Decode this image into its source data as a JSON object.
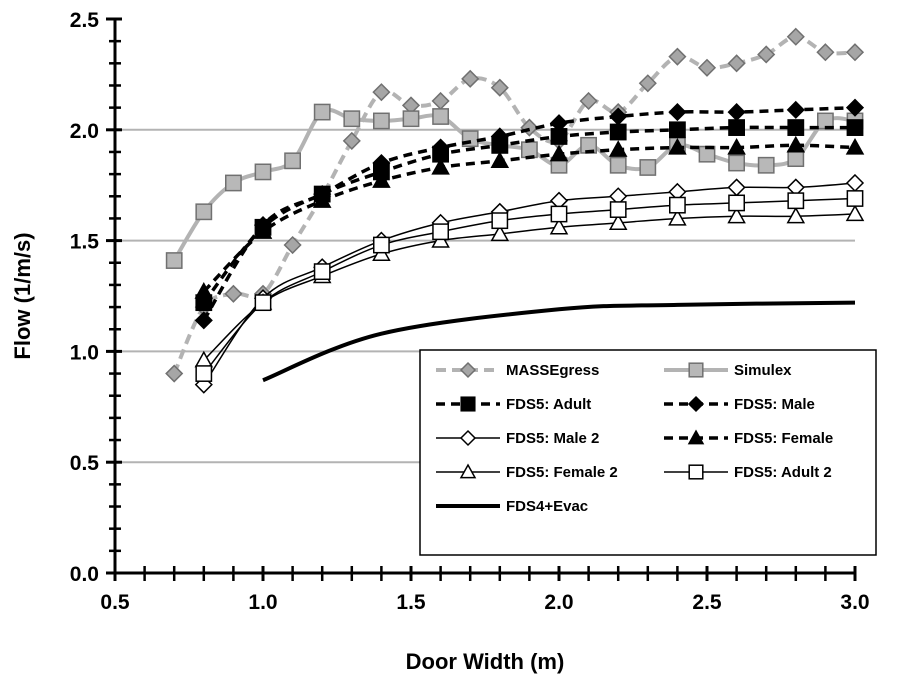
{
  "chart_data": {
    "type": "line",
    "title": "",
    "xlabel": "Door Width (m)",
    "ylabel": "Flow (1/m/s)",
    "xlim": [
      0.5,
      3.0
    ],
    "ylim": [
      0.0,
      2.5
    ],
    "xticks": [
      "0.5",
      "1.0",
      "1.5",
      "2.0",
      "2.5",
      "3.0"
    ],
    "yticks": [
      "0.0",
      "0.5",
      "1.0",
      "1.5",
      "2.0",
      "2.5"
    ],
    "grid": "horizontal",
    "legend_position": "bottom-right",
    "series": [
      {
        "name": "MASSEgress",
        "color": "#b3b3b3",
        "dash": "10,6",
        "marker": "diamond",
        "fill": "#a6a6a6",
        "width": 4,
        "x": [
          0.7,
          0.8,
          0.9,
          1.0,
          1.1,
          1.2,
          1.3,
          1.4,
          1.5,
          1.6,
          1.7,
          1.8,
          1.9,
          2.0,
          2.1,
          2.2,
          2.3,
          2.4,
          2.5,
          2.6,
          2.7,
          2.8,
          2.9,
          3.0
        ],
        "y": [
          0.9,
          1.2,
          1.26,
          1.26,
          1.48,
          1.7,
          1.95,
          2.17,
          2.11,
          2.13,
          2.23,
          2.19,
          2.01,
          1.95,
          2.13,
          2.08,
          2.21,
          2.33,
          2.28,
          2.3,
          2.34,
          2.42,
          2.35,
          2.35
        ]
      },
      {
        "name": "Simulex",
        "color": "#b3b3b3",
        "dash": "",
        "marker": "square",
        "fill": "#b8b8b8",
        "width": 4,
        "x": [
          0.7,
          0.8,
          0.9,
          1.0,
          1.1,
          1.2,
          1.3,
          1.4,
          1.5,
          1.6,
          1.7,
          1.8,
          1.9,
          2.0,
          2.1,
          2.2,
          2.3,
          2.4,
          2.5,
          2.6,
          2.7,
          2.8,
          2.9,
          3.0
        ],
        "y": [
          1.41,
          1.63,
          1.76,
          1.81,
          1.86,
          2.08,
          2.05,
          2.04,
          2.05,
          2.06,
          1.96,
          1.93,
          1.91,
          1.84,
          1.93,
          1.84,
          1.83,
          1.93,
          1.89,
          1.85,
          1.84,
          1.87,
          2.04,
          2.04
        ]
      },
      {
        "name": "FDS5: Adult",
        "color": "#000000",
        "dash": "9,6",
        "marker": "square",
        "fill": "#000000",
        "width": 3.5,
        "x": [
          0.8,
          1.0,
          1.2,
          1.4,
          1.6,
          1.8,
          2.0,
          2.2,
          2.4,
          2.6,
          2.8,
          3.0
        ],
        "y": [
          1.22,
          1.56,
          1.71,
          1.81,
          1.89,
          1.93,
          1.97,
          1.99,
          2.0,
          2.01,
          2.01,
          2.01
        ]
      },
      {
        "name": "FDS5: Male",
        "color": "#000000",
        "dash": "9,6",
        "marker": "diamond",
        "fill": "#000000",
        "width": 3.5,
        "x": [
          0.8,
          1.0,
          1.2,
          1.4,
          1.6,
          1.8,
          2.0,
          2.2,
          2.4,
          2.6,
          2.8,
          3.0
        ],
        "y": [
          1.14,
          1.57,
          1.71,
          1.85,
          1.92,
          1.97,
          2.03,
          2.06,
          2.08,
          2.08,
          2.09,
          2.1
        ]
      },
      {
        "name": "FDS5: Male 2",
        "color": "#000000",
        "dash": "",
        "marker": "diamond",
        "fill": "#ffffff",
        "width": 1.5,
        "x": [
          0.8,
          1.0,
          1.2,
          1.4,
          1.6,
          1.8,
          2.0,
          2.2,
          2.4,
          2.6,
          2.8,
          3.0
        ],
        "y": [
          0.85,
          1.24,
          1.38,
          1.5,
          1.58,
          1.63,
          1.68,
          1.7,
          1.72,
          1.74,
          1.74,
          1.76
        ]
      },
      {
        "name": "FDS5: Female",
        "color": "#000000",
        "dash": "9,6",
        "marker": "triangle",
        "fill": "#000000",
        "width": 3.5,
        "x": [
          0.8,
          1.0,
          1.2,
          1.4,
          1.6,
          1.8,
          2.0,
          2.2,
          2.4,
          2.6,
          2.8,
          3.0
        ],
        "y": [
          1.27,
          1.54,
          1.68,
          1.77,
          1.83,
          1.86,
          1.89,
          1.91,
          1.92,
          1.92,
          1.93,
          1.92
        ]
      },
      {
        "name": "FDS5: Female 2",
        "color": "#000000",
        "dash": "",
        "marker": "triangle",
        "fill": "#ffffff",
        "width": 1.5,
        "x": [
          0.8,
          1.0,
          1.2,
          1.4,
          1.6,
          1.8,
          2.0,
          2.2,
          2.4,
          2.6,
          2.8,
          3.0
        ],
        "y": [
          0.96,
          1.22,
          1.34,
          1.44,
          1.5,
          1.53,
          1.56,
          1.58,
          1.6,
          1.61,
          1.61,
          1.62
        ]
      },
      {
        "name": "FDS5: Adult 2",
        "color": "#000000",
        "dash": "",
        "marker": "square",
        "fill": "#ffffff",
        "width": 1.5,
        "x": [
          0.8,
          1.0,
          1.2,
          1.4,
          1.6,
          1.8,
          2.0,
          2.2,
          2.4,
          2.6,
          2.8,
          3.0
        ],
        "y": [
          0.9,
          1.22,
          1.36,
          1.48,
          1.54,
          1.59,
          1.62,
          1.64,
          1.66,
          1.67,
          1.68,
          1.69
        ]
      },
      {
        "name": "FDS4+Evac",
        "color": "#000000",
        "dash": "",
        "marker": "none",
        "fill": "#000000",
        "width": 4,
        "x": [
          1.0,
          1.4,
          2.0,
          2.4,
          3.0
        ],
        "y": [
          0.87,
          1.08,
          1.19,
          1.21,
          1.22
        ]
      }
    ]
  }
}
